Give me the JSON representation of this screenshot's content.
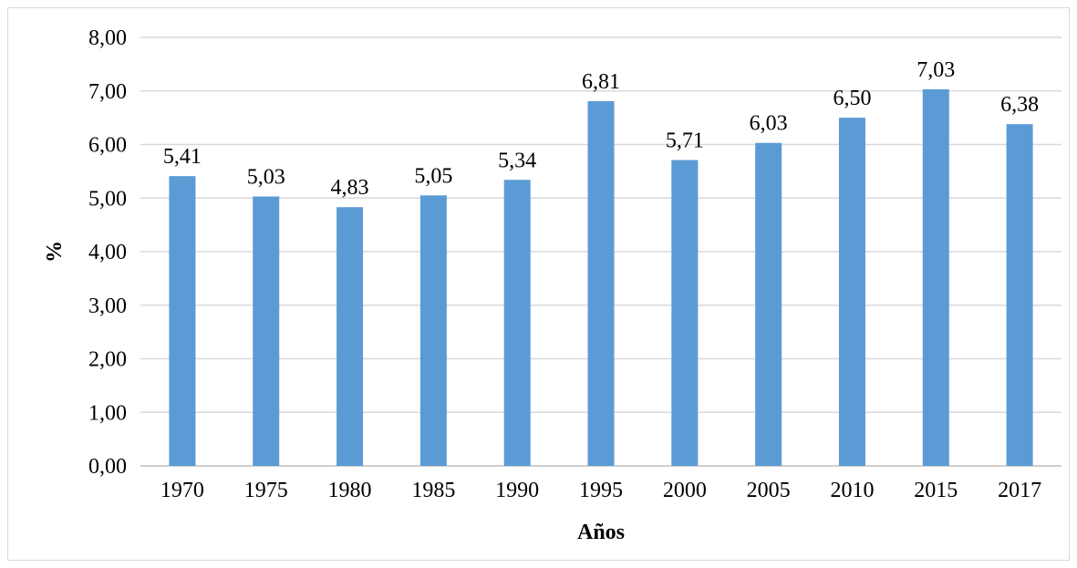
{
  "chart_data": {
    "type": "bar",
    "categories": [
      "1970",
      "1975",
      "1980",
      "1985",
      "1990",
      "1995",
      "2000",
      "2005",
      "2010",
      "2015",
      "2017"
    ],
    "values": [
      5.41,
      5.03,
      4.83,
      5.05,
      5.34,
      6.81,
      5.71,
      6.03,
      6.5,
      7.03,
      6.38
    ],
    "value_labels": [
      "5,41",
      "5,03",
      "4,83",
      "5,05",
      "5,34",
      "6,81",
      "5,71",
      "6,03",
      "6,50",
      "7,03",
      "6,38"
    ],
    "title": "",
    "xlabel": "Años",
    "ylabel": "%",
    "ylim": [
      0,
      8
    ],
    "yticks": [
      0,
      1,
      2,
      3,
      4,
      5,
      6,
      7,
      8
    ],
    "ytick_labels": [
      "0,00",
      "1,00",
      "2,00",
      "3,00",
      "4,00",
      "5,00",
      "6,00",
      "7,00",
      "8,00"
    ],
    "grid": true,
    "legend": "none",
    "bar_color": "#5b9bd5"
  }
}
